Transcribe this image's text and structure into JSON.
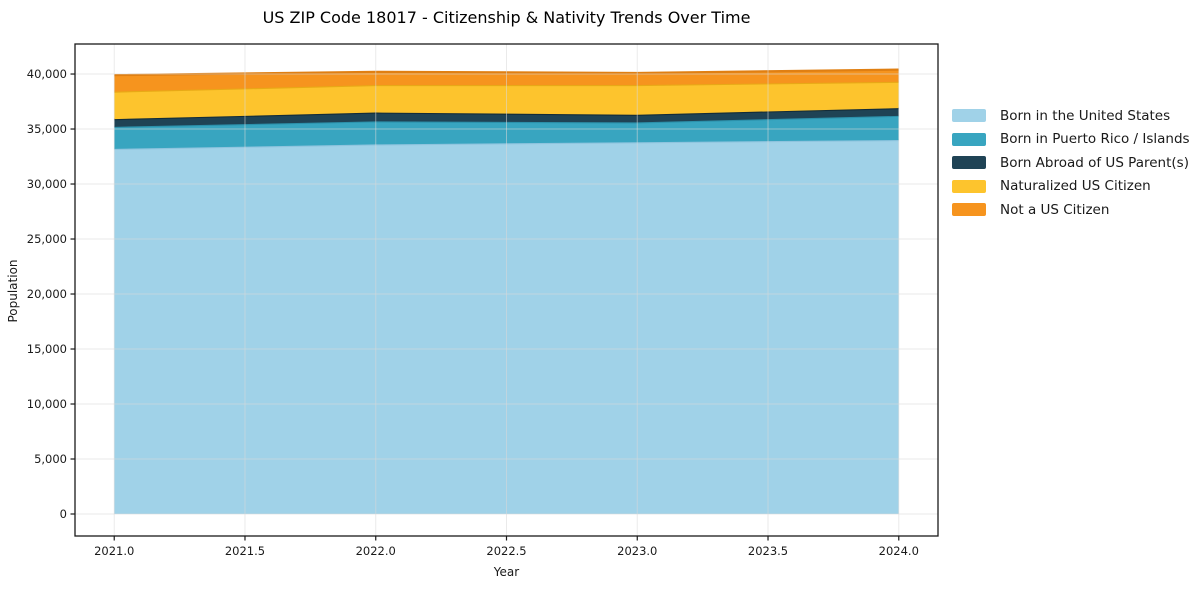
{
  "title": "US ZIP Code 18017 - Citizenship & Nativity Trends Over Time",
  "chart_data": {
    "type": "area",
    "stacked": true,
    "title": "US ZIP Code 18017 - Citizenship & Nativity Trends Over Time",
    "xlabel": "Year",
    "ylabel": "Population",
    "x": [
      2021,
      2022,
      2023,
      2024
    ],
    "series": [
      {
        "name": "Born in the United States",
        "values": [
          33200,
          33600,
          33800,
          34000
        ],
        "color": "#a0d2e8",
        "edge_color": "#8ec4de"
      },
      {
        "name": "Born in Puerto Rico / Islands",
        "values": [
          2000,
          2100,
          1800,
          2200
        ],
        "color": "#38a5c0",
        "edge_color": "#2c90aa"
      },
      {
        "name": "Born Abroad of US Parent(s)",
        "values": [
          700,
          800,
          700,
          700
        ],
        "color": "#1f4355",
        "edge_color": "#132c39"
      },
      {
        "name": "Naturalized US Citizen",
        "values": [
          2500,
          2500,
          2700,
          2400
        ],
        "color": "#fdc42d",
        "edge_color": "#e8a916"
      },
      {
        "name": "Not a US Citizen",
        "values": [
          1500,
          1200,
          1100,
          1100
        ],
        "color": "#f6941e",
        "edge_color": "#e07f12"
      }
    ],
    "totals": [
      39900,
      40200,
      40100,
      40400
    ],
    "x_ticks": {
      "values": [
        2021.0,
        2021.5,
        2022.0,
        2022.5,
        2023.0,
        2023.5,
        2024.0
      ],
      "labels": [
        "2021.0",
        "2021.5",
        "2022.0",
        "2022.5",
        "2023.0",
        "2023.5",
        "2024.0"
      ]
    },
    "y_ticks": {
      "values": [
        0,
        5000,
        10000,
        15000,
        20000,
        25000,
        30000,
        35000,
        40000
      ],
      "labels": [
        "0",
        "5,000",
        "10,000",
        "15,000",
        "20,000",
        "25,000",
        "30,000",
        "35,000",
        "40,000"
      ]
    },
    "xlim": [
      2020.85,
      2024.15
    ],
    "ylim": [
      -2000,
      42730
    ],
    "grid": true,
    "legend_position": "right of plot, no frame"
  },
  "style": {
    "background": "#ffffff",
    "spine_color": "#1a1a1a",
    "tick_label_color": "#1a1a1a",
    "grid_color": "#d9d9d9"
  }
}
